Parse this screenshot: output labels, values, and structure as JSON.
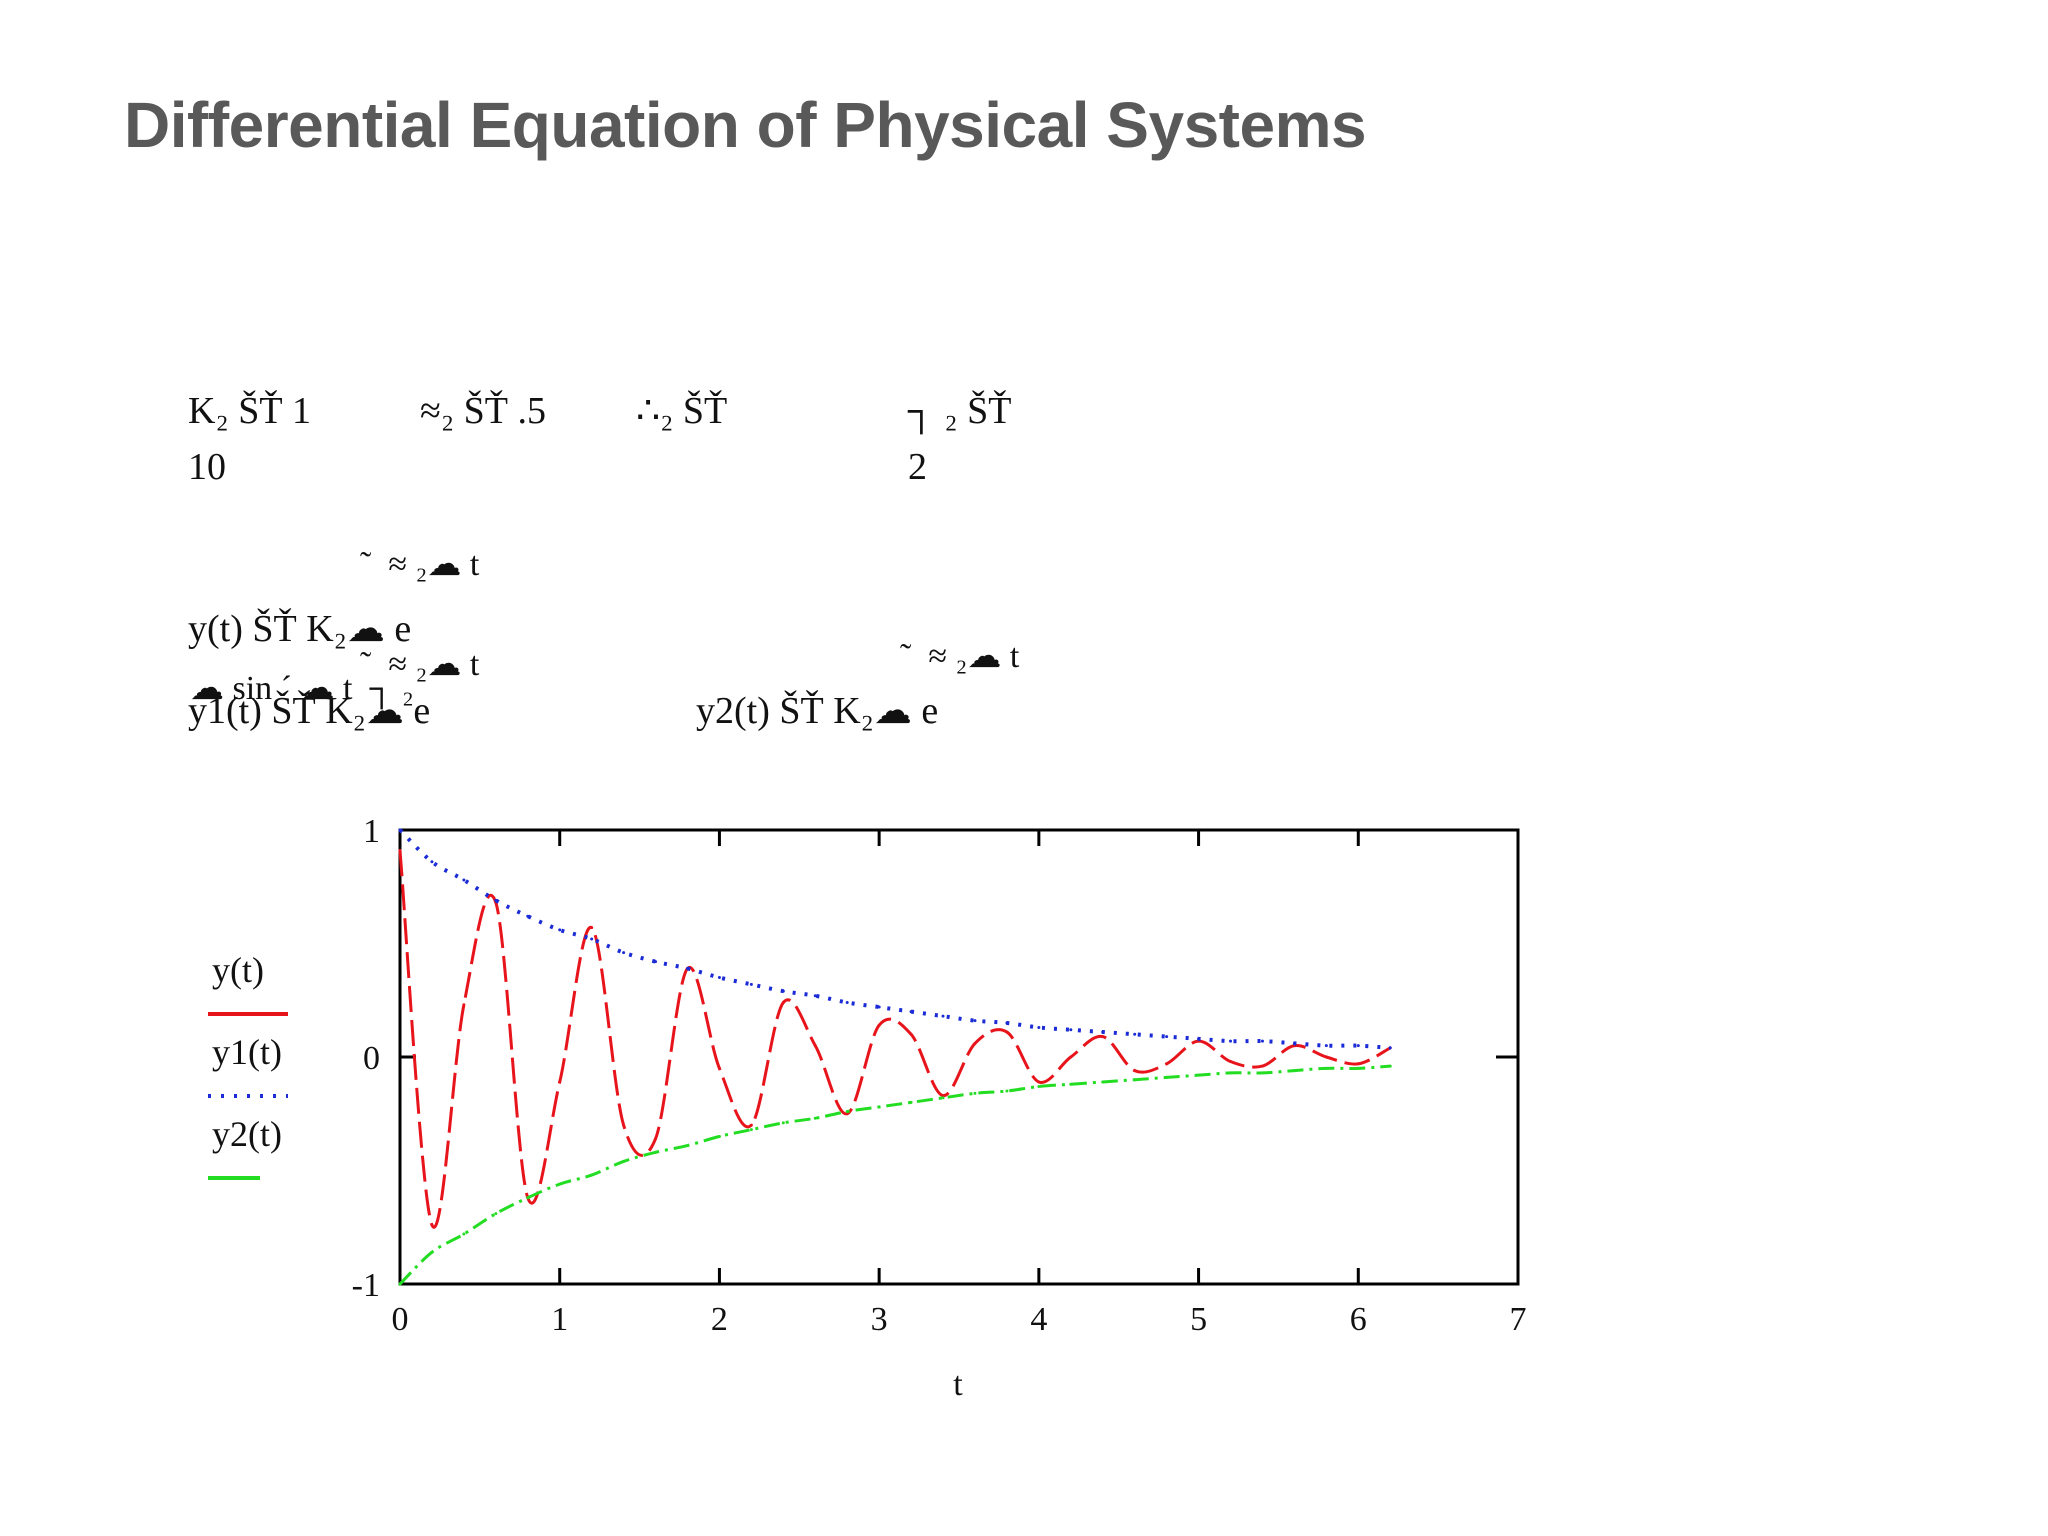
{
  "slide": {
    "title": "Differential Equation of Physical Systems"
  },
  "equations": {
    "line1": [
      "K₂ ŠŤ 1",
      "≈₂ ŠŤ .5",
      "∴₂ ŠŤ",
      "┐ ₂ ŠŤ"
    ],
    "line2": [
      "10",
      "2"
    ],
    "exp_sup_1": "˜  ≈ ₂☁ t",
    "y_def": "y(t) ŠŤ K₂☁ e",
    "exp_sup_2": "˜  ≈ ₂☁ t",
    "sin_part": "☁ sin ´ ☁ t  ┐ ₂",
    "y1_def": "y1(t) ŠŤ K₂☁ e",
    "y2_sup": "˜  ≈ ₂☁ t",
    "y2_def": "y2(t) ŠŤ K₂☁ e"
  },
  "chart_data": {
    "type": "line",
    "xlabel": "t",
    "ylabel": "",
    "xlim": [
      0,
      7
    ],
    "ylim": [
      -1,
      1
    ],
    "x_ticks": [
      "0",
      "1",
      "2",
      "3",
      "4",
      "5",
      "6",
      "7"
    ],
    "y_ticks": [
      "-1",
      "0",
      "1"
    ],
    "grid": false,
    "legend_position": "left",
    "x": [
      0,
      0.2,
      0.4,
      0.6,
      0.8,
      1.0,
      1.2,
      1.4,
      1.6,
      1.8,
      2.0,
      2.2,
      2.4,
      2.6,
      2.8,
      3.0,
      3.2,
      3.4,
      3.6,
      3.8,
      4.0,
      4.2,
      4.4,
      4.6,
      4.8,
      5.0,
      5.2,
      5.4,
      5.6,
      5.8,
      6.0,
      6.2
    ],
    "series": [
      {
        "name": "y(t)",
        "color": "#e8141b",
        "style": "dash",
        "values": [
          0.91,
          -0.74,
          0.23,
          0.68,
          -0.62,
          -0.11,
          0.57,
          -0.3,
          -0.36,
          0.39,
          -0.05,
          -0.3,
          0.24,
          0.05,
          -0.25,
          0.14,
          0.1,
          -0.17,
          0.06,
          0.11,
          -0.11,
          0.0,
          0.09,
          -0.06,
          -0.03,
          0.07,
          -0.02,
          -0.04,
          0.05,
          0.0,
          -0.03,
          0.04
        ]
      },
      {
        "name": "y1(t)",
        "color": "#1b2bd6",
        "style": "dot",
        "values": [
          1.0,
          0.86,
          0.78,
          0.69,
          0.62,
          0.56,
          0.52,
          0.46,
          0.42,
          0.39,
          0.35,
          0.32,
          0.29,
          0.27,
          0.24,
          0.22,
          0.2,
          0.18,
          0.16,
          0.15,
          0.13,
          0.12,
          0.11,
          0.1,
          0.09,
          0.08,
          0.07,
          0.07,
          0.06,
          0.05,
          0.05,
          0.04
        ]
      },
      {
        "name": "y2(t)",
        "color": "#22dd22",
        "style": "dashdot",
        "values": [
          -1.0,
          -0.86,
          -0.78,
          -0.69,
          -0.62,
          -0.56,
          -0.52,
          -0.46,
          -0.42,
          -0.39,
          -0.35,
          -0.32,
          -0.29,
          -0.27,
          -0.24,
          -0.22,
          -0.2,
          -0.18,
          -0.16,
          -0.15,
          -0.13,
          -0.12,
          -0.11,
          -0.1,
          -0.09,
          -0.08,
          -0.07,
          -0.07,
          -0.06,
          -0.05,
          -0.05,
          -0.04
        ]
      }
    ]
  }
}
